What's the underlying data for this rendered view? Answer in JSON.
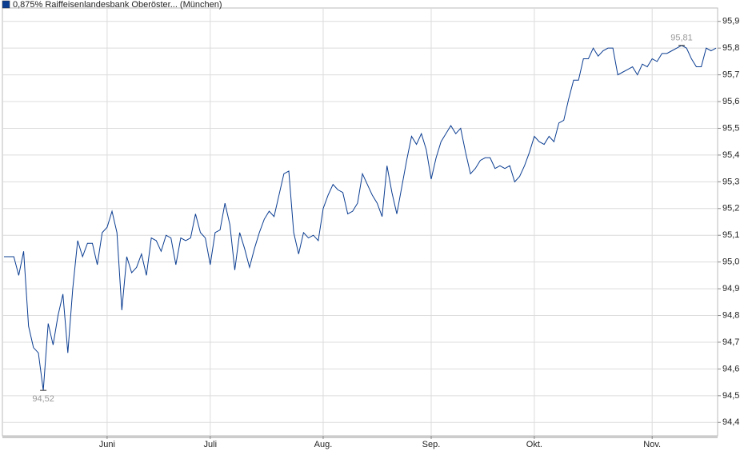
{
  "chart_data": {
    "type": "line",
    "categories": [
      null,
      null,
      null,
      null,
      null,
      null,
      null,
      null,
      null,
      null,
      null,
      null,
      null,
      null,
      null,
      null,
      null,
      null,
      null,
      null,
      null,
      "Juni",
      null,
      null,
      null,
      null,
      null,
      null,
      null,
      null,
      null,
      null,
      null,
      null,
      null,
      null,
      null,
      null,
      null,
      null,
      null,
      null,
      "Juli",
      null,
      null,
      null,
      null,
      null,
      null,
      null,
      null,
      null,
      null,
      null,
      null,
      null,
      null,
      null,
      null,
      null,
      null,
      null,
      null,
      null,
      null,
      "Aug.",
      null,
      null,
      null,
      null,
      null,
      null,
      null,
      null,
      null,
      null,
      null,
      null,
      null,
      null,
      null,
      null,
      null,
      null,
      null,
      null,
      null,
      "Sep.",
      null,
      null,
      null,
      null,
      null,
      null,
      null,
      null,
      null,
      null,
      null,
      null,
      null,
      null,
      null,
      null,
      null,
      null,
      null,
      null,
      "Okt.",
      null,
      null,
      null,
      null,
      null,
      null,
      null,
      null,
      null,
      null,
      null,
      null,
      null,
      null,
      null,
      null,
      null,
      null,
      null,
      null,
      null,
      null,
      null,
      "Nov.",
      null,
      null,
      null,
      null,
      null,
      null,
      null,
      null,
      null,
      null,
      null,
      null,
      null
    ],
    "series": [
      {
        "name": "0,875% Raiffeisenlandesbank Oberöster... (München)",
        "color": "#0b3d91",
        "values": [
          95.02,
          95.02,
          95.02,
          94.95,
          95.04,
          94.76,
          94.68,
          94.66,
          94.52,
          94.77,
          94.69,
          94.8,
          94.88,
          94.66,
          94.9,
          95.08,
          95.02,
          95.07,
          95.07,
          94.99,
          95.11,
          95.13,
          95.19,
          95.11,
          94.82,
          95.02,
          94.96,
          94.98,
          95.03,
          94.95,
          95.09,
          95.08,
          95.04,
          95.1,
          95.09,
          94.99,
          95.09,
          95.08,
          95.09,
          95.18,
          95.11,
          95.09,
          94.99,
          95.11,
          95.12,
          95.22,
          95.14,
          94.97,
          95.11,
          95.05,
          94.98,
          95.05,
          95.11,
          95.16,
          95.19,
          95.17,
          95.25,
          95.33,
          95.34,
          95.11,
          95.03,
          95.11,
          95.09,
          95.1,
          95.08,
          95.2,
          95.25,
          95.29,
          95.27,
          95.26,
          95.18,
          95.19,
          95.22,
          95.33,
          95.29,
          95.25,
          95.22,
          95.17,
          95.36,
          95.26,
          95.18,
          95.28,
          95.38,
          95.47,
          95.44,
          95.48,
          95.42,
          95.31,
          95.39,
          95.45,
          95.48,
          95.51,
          95.48,
          95.5,
          95.41,
          95.33,
          95.35,
          95.38,
          95.39,
          95.39,
          95.35,
          95.36,
          95.35,
          95.36,
          95.3,
          95.32,
          95.36,
          95.41,
          95.47,
          95.45,
          95.44,
          95.47,
          95.45,
          95.52,
          95.53,
          95.61,
          95.68,
          95.68,
          95.76,
          95.76,
          95.8,
          95.77,
          95.79,
          95.8,
          95.8,
          95.7,
          95.71,
          95.72,
          95.73,
          95.7,
          95.74,
          95.73,
          95.76,
          95.75,
          95.78,
          95.78,
          95.79,
          95.8,
          95.81,
          95.8,
          95.76,
          95.73,
          95.73,
          95.8,
          95.79,
          95.8
        ]
      }
    ],
    "min_label": "94,52",
    "max_label": "95,81",
    "ylim": [
      94.35,
      95.95
    ],
    "yticks": [
      {
        "value": 94.4,
        "label": "94,4"
      },
      {
        "value": 94.5,
        "label": "94,5"
      },
      {
        "value": 94.6,
        "label": "94,6"
      },
      {
        "value": 94.7,
        "label": "94,7"
      },
      {
        "value": 94.8,
        "label": "94,8"
      },
      {
        "value": 94.9,
        "label": "94,9"
      },
      {
        "value": 95.0,
        "label": "95,0"
      },
      {
        "value": 95.1,
        "label": "95,1"
      },
      {
        "value": 95.2,
        "label": "95,2"
      },
      {
        "value": 95.3,
        "label": "95,3"
      },
      {
        "value": 95.4,
        "label": "95,4"
      },
      {
        "value": 95.5,
        "label": "95,5"
      },
      {
        "value": 95.6,
        "label": "95,6"
      },
      {
        "value": 95.7,
        "label": "95,7"
      },
      {
        "value": 95.8,
        "label": "95,8"
      },
      {
        "value": 95.9,
        "label": "95,9"
      }
    ],
    "grid": true
  }
}
